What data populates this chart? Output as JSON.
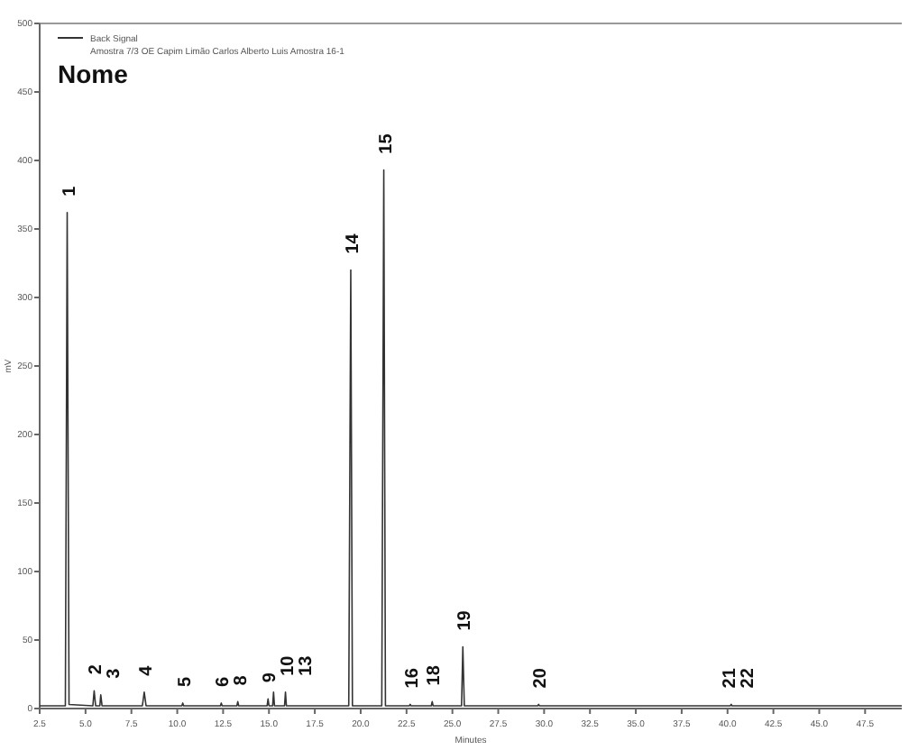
{
  "chart_data": {
    "type": "line",
    "title": "Nome",
    "subtitle": "Amostra 7/3 OE Capim Limão Carlos Alberto Luis Amostra 16-1",
    "xlabel": "Minutes",
    "ylabel": "mV",
    "series": [
      {
        "name": "Back Signal",
        "color": "#333333",
        "x": [
          2.5,
          3.9,
          4.0,
          4.1,
          5.4,
          5.47,
          5.55,
          5.78,
          5.83,
          5.9,
          8.1,
          8.2,
          8.3,
          10.25,
          10.3,
          10.35,
          12.35,
          12.4,
          12.45,
          13.25,
          13.3,
          13.35,
          14.9,
          14.95,
          15.0,
          15.2,
          15.25,
          15.3,
          15.85,
          15.9,
          15.95,
          19.35,
          19.46,
          19.55,
          21.15,
          21.26,
          21.35,
          22.65,
          22.7,
          22.75,
          23.85,
          23.9,
          23.95,
          25.5,
          25.57,
          25.65,
          29.65,
          29.7,
          29.75,
          40.15,
          40.2,
          40.25,
          49.5
        ],
        "values": [
          2,
          2,
          362,
          3,
          2,
          13,
          2,
          2,
          10,
          2,
          2,
          12,
          2,
          2,
          4,
          2,
          2,
          4,
          2,
          2,
          5,
          2,
          2,
          7,
          2,
          2,
          12,
          2,
          2,
          12,
          2,
          2,
          320,
          2,
          2,
          393,
          2,
          2,
          3,
          2,
          2,
          5,
          2,
          2,
          45,
          2,
          2,
          3,
          2,
          2,
          3,
          2,
          2
        ]
      }
    ],
    "xlim": [
      2.5,
      49.5
    ],
    "xticks": [
      {
        "value": 2.5,
        "label": "2.5"
      },
      {
        "value": 5,
        "label": "5.0"
      },
      {
        "value": 7.5,
        "label": "7.5"
      },
      {
        "value": 10,
        "label": "10.0"
      },
      {
        "value": 12.5,
        "label": "12.5"
      },
      {
        "value": 15,
        "label": "15.0"
      },
      {
        "value": 17.5,
        "label": "17.5"
      },
      {
        "value": 20,
        "label": "20.0"
      },
      {
        "value": 22.5,
        "label": "22.5"
      },
      {
        "value": 25,
        "label": "25.0"
      },
      {
        "value": 27.5,
        "label": "27.5"
      },
      {
        "value": 30,
        "label": "30.0"
      },
      {
        "value": 32.5,
        "label": "32.5"
      },
      {
        "value": 35,
        "label": "35.0"
      },
      {
        "value": 37.5,
        "label": "37.5"
      },
      {
        "value": 40,
        "label": "40.0"
      },
      {
        "value": 42.5,
        "label": "42.5"
      },
      {
        "value": 45,
        "label": "45.0"
      },
      {
        "value": 47.5,
        "label": "47.5"
      }
    ],
    "ylim": [
      0,
      500
    ],
    "yticks": [
      0,
      50,
      100,
      150,
      200,
      250,
      300,
      350,
      400,
      450,
      500
    ],
    "legend": "top left",
    "marker": "none",
    "line_style": "solid",
    "annotations": [
      {
        "text": "1",
        "x": 4.0,
        "y": 362
      },
      {
        "text": "2",
        "x": 5.47,
        "y": 13
      },
      {
        "text": "3",
        "x": 5.83,
        "y": 10
      },
      {
        "text": "4",
        "x": 8.2,
        "y": 12
      },
      {
        "text": "5",
        "x": 10.3,
        "y": 4
      },
      {
        "text": "6",
        "x": 12.4,
        "y": 4
      },
      {
        "text": "8",
        "x": 13.3,
        "y": 5
      },
      {
        "text": "9",
        "x": 14.95,
        "y": 7
      },
      {
        "text": "10",
        "x": 15.25,
        "y": 12
      },
      {
        "text": "13",
        "x": 15.9,
        "y": 12
      },
      {
        "text": "14",
        "x": 19.46,
        "y": 320
      },
      {
        "text": "15",
        "x": 21.26,
        "y": 393
      },
      {
        "text": "16",
        "x": 22.7,
        "y": 3
      },
      {
        "text": "18",
        "x": 23.9,
        "y": 5
      },
      {
        "text": "19",
        "x": 25.57,
        "y": 45
      },
      {
        "text": "20",
        "x": 29.7,
        "y": 3
      },
      {
        "text": "21",
        "x": 40.0,
        "y": 3
      },
      {
        "text": "22",
        "x": 40.4,
        "y": 3
      }
    ]
  }
}
